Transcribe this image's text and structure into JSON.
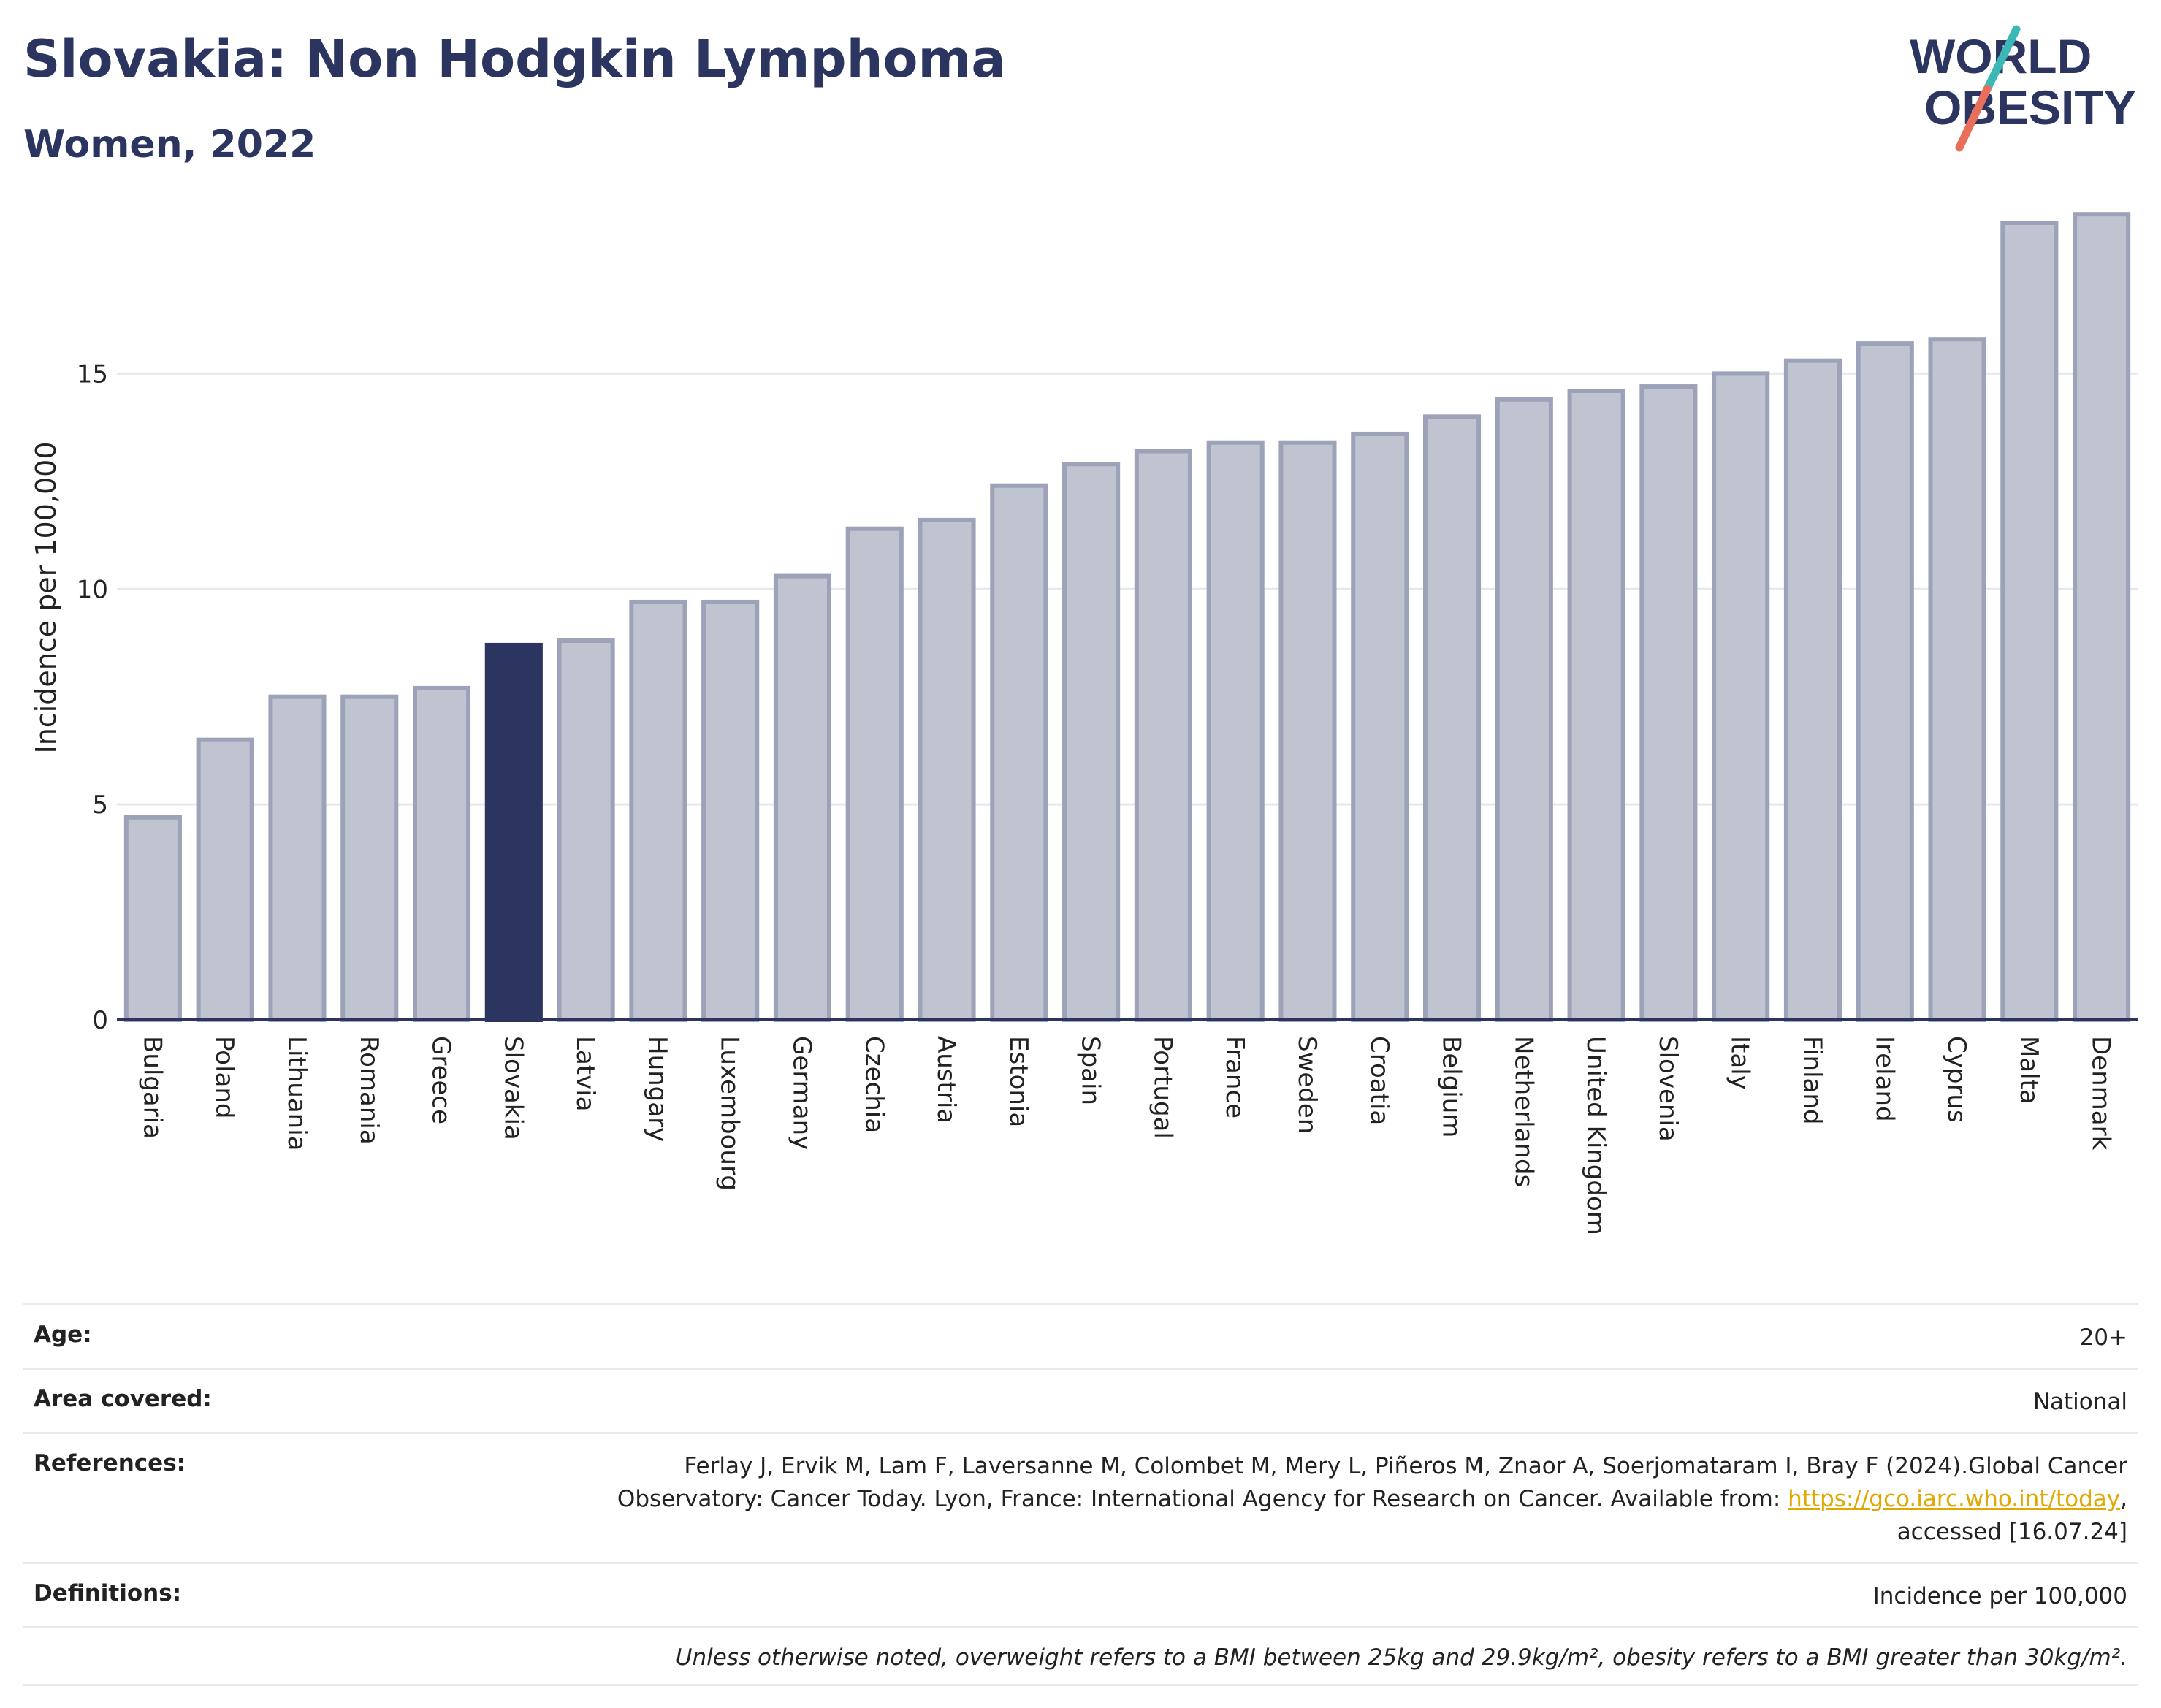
{
  "header": {
    "title": "Slovakia: Non Hodgkin Lymphoma",
    "subtitle": "Women, 2022"
  },
  "logo": {
    "line1": "WORLD",
    "line2": "OBESITY",
    "colors": {
      "text": "#2b3560",
      "slash_teal": "#3bb8b5",
      "slash_coral": "#e8705b"
    }
  },
  "chart_data": {
    "type": "bar",
    "title": "Slovakia: Non Hodgkin Lymphoma",
    "subtitle": "Women, 2022",
    "xlabel": "",
    "ylabel": "Incidence per 100,000",
    "ylim": [
      0,
      19.5
    ],
    "yticks": [
      0,
      5,
      10,
      15
    ],
    "grid": true,
    "highlight": "Slovakia",
    "colors": {
      "default_fill": "#c0c4d1",
      "default_stroke": "#9ca2b8",
      "highlight_fill": "#2b3560",
      "axis": "#2b3560",
      "grid": "#e6e8ee"
    },
    "categories": [
      "Bulgaria",
      "Poland",
      "Lithuania",
      "Romania",
      "Greece",
      "Slovakia",
      "Latvia",
      "Hungary",
      "Luxembourg",
      "Germany",
      "Czechia",
      "Austria",
      "Estonia",
      "Spain",
      "Portugal",
      "France",
      "Sweden",
      "Croatia",
      "Belgium",
      "Netherlands",
      "United Kingdom",
      "Slovenia",
      "Italy",
      "Finland",
      "Ireland",
      "Cyprus",
      "Malta",
      "Denmark"
    ],
    "values": [
      4.7,
      6.5,
      7.5,
      7.5,
      7.7,
      8.7,
      8.8,
      9.7,
      9.7,
      10.3,
      11.4,
      11.6,
      12.4,
      12.9,
      13.2,
      13.4,
      13.4,
      13.6,
      14.0,
      14.4,
      14.6,
      14.7,
      15.0,
      15.3,
      15.7,
      15.8,
      18.5,
      18.7
    ]
  },
  "info": {
    "age_label": "Age:",
    "age_value": "20+",
    "area_label": "Area covered:",
    "area_value": "National",
    "references_label": "References:",
    "references_line1": "Ferlay J, Ervik M, Lam F, Laversanne M, Colombet M, Mery L, Piñeros M, Znaor A, Soerjomataram I, Bray F (2024).Global Cancer",
    "references_line2": "Observatory: Cancer Today. Lyon, France: International Agency for Research on Cancer. Available from:",
    "references_link": "https://gco.iarc.who.int/today",
    "references_line2_end": ",",
    "references_line3": "accessed [16.07.24]",
    "definitions_label": "Definitions:",
    "definitions_value": "Incidence per 100,000",
    "note": "Unless otherwise noted, overweight refers to a BMI between 25kg and 29.9kg/m², obesity refers to a BMI greater than 30kg/m²."
  }
}
